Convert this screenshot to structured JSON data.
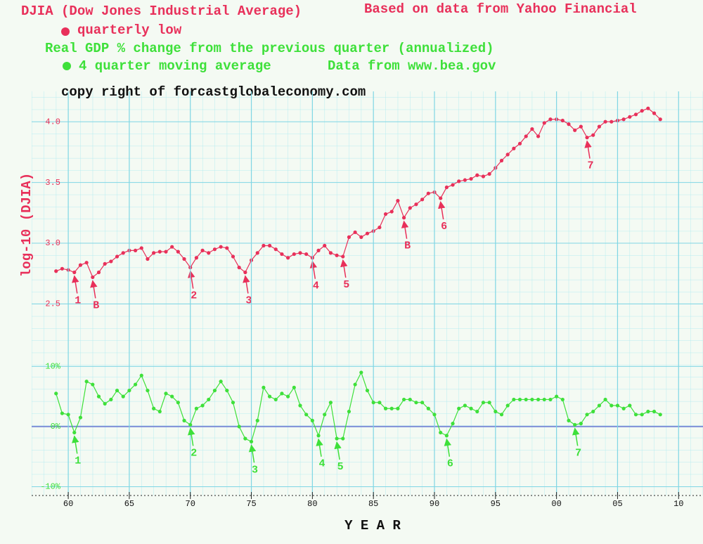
{
  "credit": "copy right of forcastglobaleconomy.com",
  "chart_data": [
    {
      "type": "line",
      "title": "DJIA (Dow Jones Industrial Average)",
      "subtitle": "Based on data from Yahoo Financial",
      "ylabel": "log-10 (DJIA)",
      "xlim": [
        1957,
        2012
      ],
      "ylim": [
        2.3,
        4.25
      ],
      "yticks": [
        2.5,
        {
          "value": 3,
          "label": "3.0"
        },
        3.5,
        {
          "value": 4,
          "label": "4.0"
        }
      ],
      "x": [
        1959,
        1959.5,
        1960,
        1960.5,
        1961,
        1961.5,
        1962,
        1962.5,
        1963,
        1963.5,
        1964,
        1964.5,
        1965,
        1965.5,
        1966,
        1966.5,
        1967,
        1967.5,
        1968,
        1968.5,
        1969,
        1969.5,
        1970,
        1970.5,
        1971,
        1971.5,
        1972,
        1972.5,
        1973,
        1973.5,
        1974,
        1974.5,
        1975,
        1975.5,
        1976,
        1976.5,
        1977,
        1977.5,
        1978,
        1978.5,
        1979,
        1979.5,
        1980,
        1980.5,
        1981,
        1981.5,
        1982,
        1982.5,
        1983,
        1983.5,
        1984,
        1984.5,
        1985,
        1985.5,
        1986,
        1986.5,
        1987,
        1987.5,
        1988,
        1988.5,
        1989,
        1989.5,
        1990,
        1990.5,
        1991,
        1991.5,
        1992,
        1992.5,
        1993,
        1993.5,
        1994,
        1994.5,
        1995,
        1995.5,
        1996,
        1996.5,
        1997,
        1997.5,
        1998,
        1998.5,
        1999,
        1999.5,
        2000,
        2000.5,
        2001,
        2001.5,
        2002,
        2002.5,
        2003,
        2003.5,
        2004,
        2004.5,
        2005,
        2005.5,
        2006,
        2006.5,
        2007,
        2007.5,
        2008,
        2008.5
      ],
      "series": [
        {
          "name": "quarterly low",
          "color": "#e8305a",
          "values": [
            2.77,
            2.79,
            2.78,
            2.76,
            2.82,
            2.84,
            2.72,
            2.76,
            2.83,
            2.85,
            2.89,
            2.92,
            2.94,
            2.94,
            2.96,
            2.87,
            2.92,
            2.93,
            2.93,
            2.97,
            2.93,
            2.87,
            2.8,
            2.88,
            2.94,
            2.92,
            2.95,
            2.97,
            2.96,
            2.89,
            2.8,
            2.76,
            2.86,
            2.92,
            2.98,
            2.98,
            2.95,
            2.91,
            2.88,
            2.91,
            2.92,
            2.91,
            2.88,
            2.94,
            2.98,
            2.92,
            2.9,
            2.89,
            3.05,
            3.09,
            3.05,
            3.08,
            3.1,
            3.13,
            3.24,
            3.26,
            3.35,
            3.21,
            3.29,
            3.32,
            3.36,
            3.41,
            3.42,
            3.37,
            3.46,
            3.48,
            3.51,
            3.52,
            3.53,
            3.56,
            3.55,
            3.57,
            3.62,
            3.68,
            3.73,
            3.78,
            3.82,
            3.88,
            3.94,
            3.88,
            3.99,
            4.02,
            4.02,
            4.01,
            3.98,
            3.93,
            3.96,
            3.87,
            3.89,
            3.96,
            4.0,
            4.0,
            4.01,
            4.02,
            4.04,
            4.06,
            4.09,
            4.11,
            4.07,
            4.02
          ]
        }
      ],
      "annotations": [
        {
          "label": "1",
          "x": 1960.5,
          "y": 2.76
        },
        {
          "label": "B",
          "x": 1962,
          "y": 2.72
        },
        {
          "label": "2",
          "x": 1970,
          "y": 2.8
        },
        {
          "label": "3",
          "x": 1974.5,
          "y": 2.76
        },
        {
          "label": "4",
          "x": 1980,
          "y": 2.88
        },
        {
          "label": "5",
          "x": 1982.5,
          "y": 2.89
        },
        {
          "label": "B",
          "x": 1987.5,
          "y": 3.21
        },
        {
          "label": "6",
          "x": 1990.5,
          "y": 3.37
        },
        {
          "label": "7",
          "x": 2002.5,
          "y": 3.87
        }
      ]
    },
    {
      "type": "line",
      "title": "Real GDP % change from the previous quarter (annualized)",
      "subtitle": "Data from www.bea.gov",
      "xlabel": "Y E A R",
      "xlim": [
        1957,
        2012
      ],
      "ylim": [
        -11,
        12.5
      ],
      "yticks": [
        {
          "value": -10,
          "label": "-10%"
        },
        {
          "value": 0,
          "label": "0%"
        },
        {
          "value": 10,
          "label": "10%"
        }
      ],
      "baseline_color": "#8090d8",
      "xticks": [
        {
          "value": 1960,
          "label": "60"
        },
        {
          "value": 1965,
          "label": "65"
        },
        {
          "value": 1970,
          "label": "70"
        },
        {
          "value": 1975,
          "label": "75"
        },
        {
          "value": 1980,
          "label": "80"
        },
        {
          "value": 1985,
          "label": "85"
        },
        {
          "value": 1990,
          "label": "90"
        },
        {
          "value": 1995,
          "label": "95"
        },
        {
          "value": 2000,
          "label": "00"
        },
        {
          "value": 2005,
          "label": "05"
        },
        {
          "value": 2010,
          "label": "10"
        }
      ],
      "x": [
        1959,
        1959.5,
        1960,
        1960.5,
        1961,
        1961.5,
        1962,
        1962.5,
        1963,
        1963.5,
        1964,
        1964.5,
        1965,
        1965.5,
        1966,
        1966.5,
        1967,
        1967.5,
        1968,
        1968.5,
        1969,
        1969.5,
        1970,
        1970.5,
        1971,
        1971.5,
        1972,
        1972.5,
        1973,
        1973.5,
        1974,
        1974.5,
        1975,
        1975.5,
        1976,
        1976.5,
        1977,
        1977.5,
        1978,
        1978.5,
        1979,
        1979.5,
        1980,
        1980.5,
        1981,
        1981.5,
        1982,
        1982.5,
        1983,
        1983.5,
        1984,
        1984.5,
        1985,
        1985.5,
        1986,
        1986.5,
        1987,
        1987.5,
        1988,
        1988.5,
        1989,
        1989.5,
        1990,
        1990.5,
        1991,
        1991.5,
        1992,
        1992.5,
        1993,
        1993.5,
        1994,
        1994.5,
        1995,
        1995.5,
        1996,
        1996.5,
        1997,
        1997.5,
        1998,
        1998.5,
        1999,
        1999.5,
        2000,
        2000.5,
        2001,
        2001.5,
        2002,
        2002.5,
        2003,
        2003.5,
        2004,
        2004.5,
        2005,
        2005.5,
        2006,
        2006.5,
        2007,
        2007.5,
        2008,
        2008.5
      ],
      "series": [
        {
          "name": "4 quarter moving average",
          "color": "#3ee03a",
          "values": [
            5.5,
            2.2,
            2.0,
            -1.0,
            1.5,
            7.5,
            7.0,
            5.0,
            3.8,
            4.5,
            6.0,
            5.0,
            6.0,
            7.0,
            8.5,
            6.0,
            3.0,
            2.5,
            5.5,
            5.0,
            4.0,
            1.0,
            0.3,
            3.0,
            3.5,
            4.5,
            6.0,
            7.5,
            6.0,
            4.0,
            0.0,
            -2.0,
            -2.5,
            1.0,
            6.5,
            5.0,
            4.5,
            5.5,
            5.0,
            6.5,
            3.5,
            2.0,
            1.0,
            -1.5,
            2.0,
            4.0,
            -2.0,
            -2.0,
            2.5,
            7.0,
            9.0,
            6.0,
            4.0,
            4.0,
            3.0,
            3.0,
            3.0,
            4.5,
            4.5,
            4.0,
            4.0,
            3.0,
            2.0,
            -1.0,
            -1.5,
            0.5,
            3.0,
            3.5,
            3.0,
            2.5,
            4.0,
            4.0,
            2.5,
            2.0,
            3.5,
            4.5,
            4.5,
            4.5,
            4.5,
            4.5,
            4.5,
            4.5,
            5.0,
            4.5,
            1.0,
            0.3,
            0.5,
            2.0,
            2.5,
            3.5,
            4.5,
            3.5,
            3.5,
            3.0,
            3.5,
            2.0,
            2.0,
            2.5,
            2.5,
            2.0
          ]
        }
      ],
      "annotations": [
        {
          "label": "1",
          "x": 1960.5,
          "y": -1.0
        },
        {
          "label": "2",
          "x": 1970,
          "y": 0.3
        },
        {
          "label": "3",
          "x": 1975,
          "y": -2.5
        },
        {
          "label": "4",
          "x": 1980.5,
          "y": -1.5
        },
        {
          "label": "5",
          "x": 1982,
          "y": -2.0
        },
        {
          "label": "6",
          "x": 1991,
          "y": -1.5
        },
        {
          "label": "7",
          "x": 2001.5,
          "y": 0.3
        }
      ]
    }
  ]
}
